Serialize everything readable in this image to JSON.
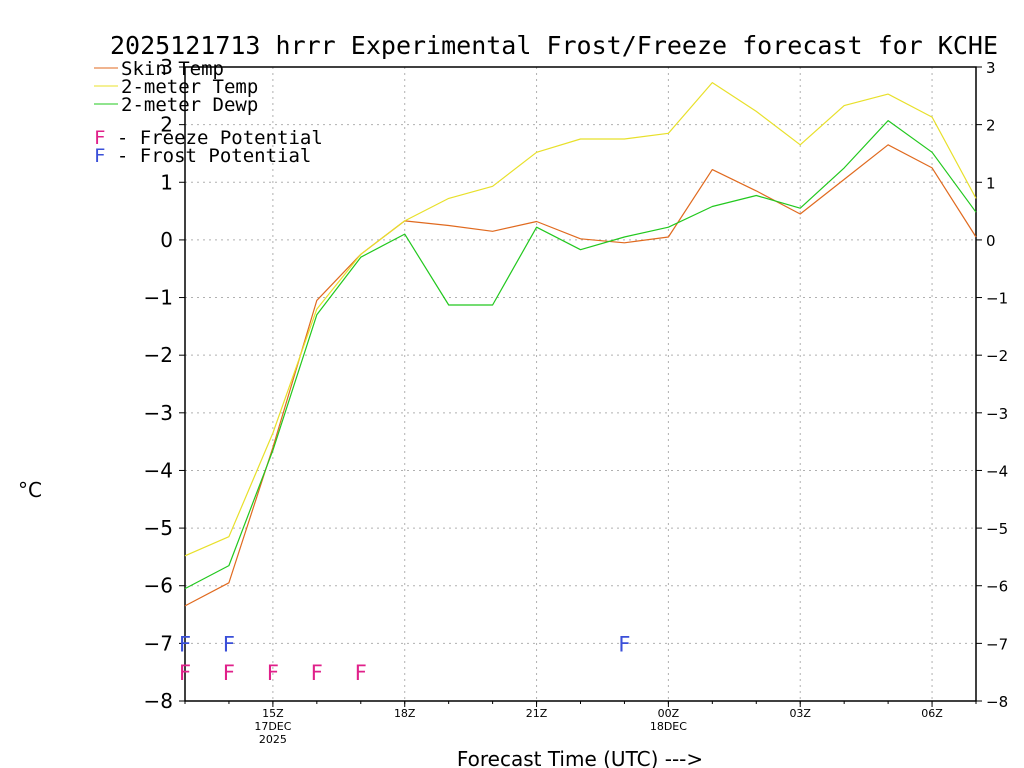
{
  "chart_data": {
    "type": "line",
    "title": "2025121713 hrrr Experimental Frost/Freeze forecast for KCHE",
    "ylabel": "°C",
    "xlabel": "Forecast Time (UTC) --->",
    "ylim": [
      -8,
      3
    ],
    "yticks": [
      3,
      2,
      1,
      0,
      -1,
      -2,
      -3,
      -4,
      -5,
      -6,
      -7,
      -8
    ],
    "yticks_right": [
      3,
      2,
      1,
      0,
      -1,
      -2,
      -3,
      -4,
      -5,
      -6,
      -7,
      -8
    ],
    "hours": [
      13,
      14,
      15,
      16,
      17,
      18,
      19,
      20,
      21,
      22,
      23,
      24,
      25,
      26,
      27,
      28,
      29,
      30,
      31
    ],
    "xlim": [
      13,
      31
    ],
    "xticks": [
      {
        "hour": 15,
        "lines": [
          "15Z",
          "17DEC",
          "2025"
        ]
      },
      {
        "hour": 18,
        "lines": [
          "18Z"
        ]
      },
      {
        "hour": 21,
        "lines": [
          "21Z"
        ]
      },
      {
        "hour": 24,
        "lines": [
          "00Z",
          "18DEC"
        ]
      },
      {
        "hour": 27,
        "lines": [
          "03Z"
        ]
      },
      {
        "hour": 30,
        "lines": [
          "06Z"
        ]
      }
    ],
    "series": [
      {
        "name": "Skin Temp",
        "color": "#e06a1f",
        "values": [
          -6.35,
          -5.95,
          -3.6,
          -1.05,
          -0.25,
          0.33,
          0.25,
          0.15,
          0.32,
          0.02,
          -0.05,
          0.05,
          1.22,
          0.85,
          0.45,
          1.05,
          1.65,
          1.25,
          0.05
        ]
      },
      {
        "name": "2-meter Temp",
        "color": "#e8e02a",
        "values": [
          -5.48,
          -5.15,
          -3.35,
          -1.2,
          -0.25,
          0.33,
          0.72,
          0.93,
          1.52,
          1.75,
          1.75,
          1.85,
          2.73,
          2.23,
          1.65,
          2.33,
          2.53,
          2.13,
          0.72
        ]
      },
      {
        "name": "2-meter Dewp",
        "color": "#22c81e",
        "values": [
          -6.05,
          -5.65,
          -3.65,
          -1.3,
          -0.3,
          0.1,
          -1.13,
          -1.13,
          0.22,
          -0.17,
          0.05,
          0.22,
          0.58,
          0.77,
          0.55,
          1.25,
          2.07,
          1.52,
          0.48
        ]
      }
    ],
    "legend_entries": [
      {
        "label": "Skin Temp",
        "color": "#e06a1f"
      },
      {
        "label": "2-meter Temp",
        "color": "#e8e02a"
      },
      {
        "label": "2-meter Dewp",
        "color": "#22c81e"
      }
    ],
    "potential_legend": [
      {
        "symbol": "F",
        "text": " - Freeze Potential",
        "color": "#e0208a"
      },
      {
        "symbol": "F",
        "text": " - Frost Potential",
        "color": "#3a4fd8"
      }
    ],
    "frost_potential_hours": [
      13,
      14,
      23
    ],
    "freeze_potential_hours": [
      13,
      14,
      15,
      16,
      17
    ],
    "marker_label": "F",
    "frost_color": "#3a4fd8",
    "freeze_color": "#e0208a"
  }
}
